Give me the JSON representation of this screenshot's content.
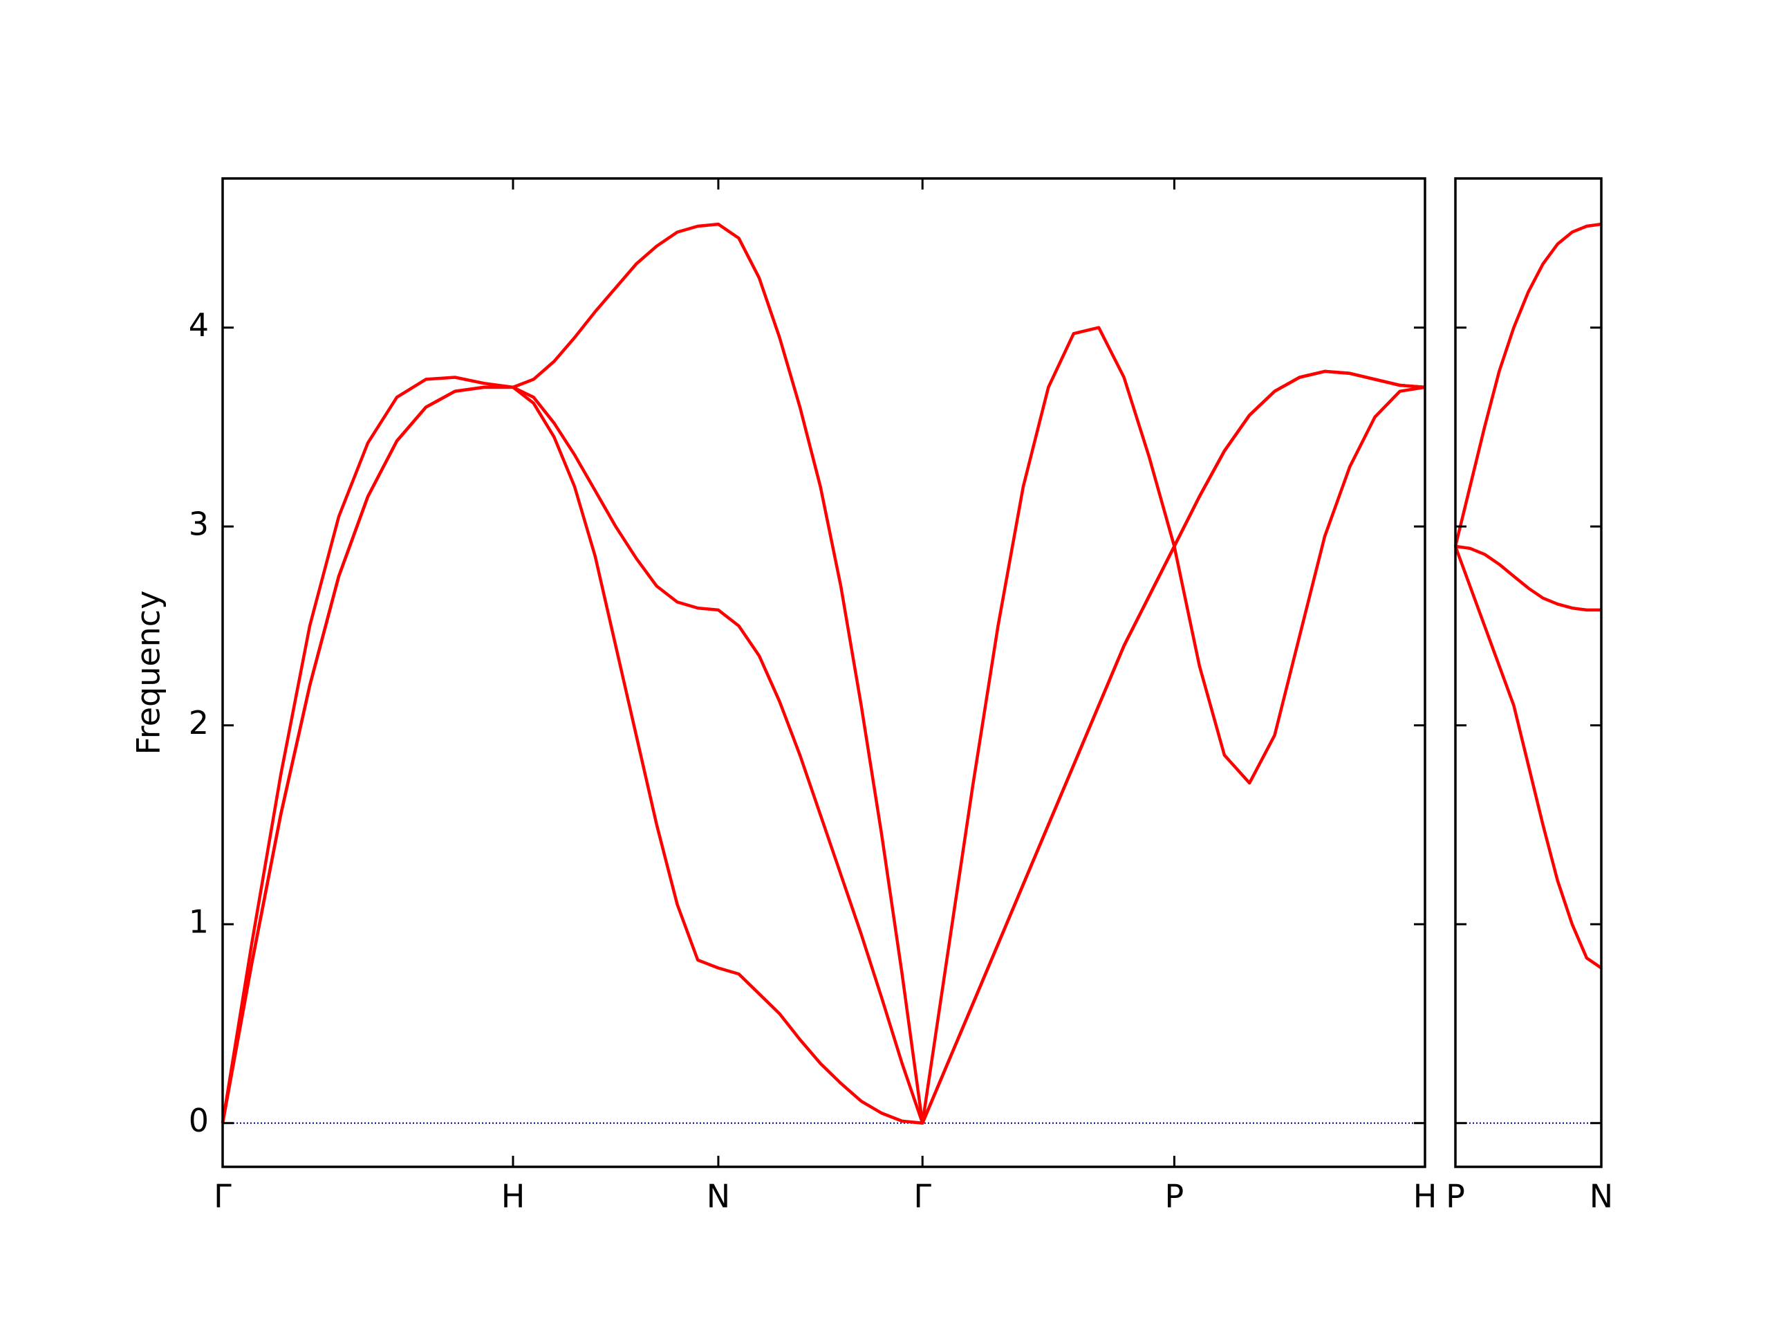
{
  "chart_data": [
    {
      "type": "line",
      "ylabel": "Frequency",
      "x": [
        0,
        0.0256,
        0.0512,
        0.0768,
        0.1024,
        0.128,
        0.1536,
        0.1792,
        0.2048,
        0.2304,
        0.256,
        0.2741,
        0.2922,
        0.3103,
        0.3284,
        0.3465,
        0.3646,
        0.3827,
        0.4008,
        0.4189,
        0.437,
        0.455,
        0.473,
        0.491,
        0.509,
        0.527,
        0.545,
        0.563,
        0.581,
        0.599,
        0.617,
        0.6392,
        0.6614,
        0.6836,
        0.7058,
        0.728,
        0.7502,
        0.7724,
        0.7946,
        0.8168,
        0.839,
        0.8611,
        0.8832,
        0.9053,
        0.9274,
        0.9495,
        0.9716,
        0.9937,
        1.0158,
        1.0379,
        1.06
      ],
      "series": [
        {
          "color": "#ff0000",
          "values": [
            0,
            0.9,
            1.75,
            2.5,
            3.05,
            3.42,
            3.65,
            3.74,
            3.75,
            3.72,
            3.7,
            3.74,
            3.83,
            3.95,
            4.08,
            4.2,
            4.32,
            4.41,
            4.48,
            4.51,
            4.52,
            4.45,
            4.25,
            3.95,
            3.6,
            3.2,
            2.7,
            2.1,
            1.45,
            0.75,
            0,
            0.85,
            1.7,
            2.5,
            3.2,
            3.7,
            3.97,
            4.0,
            3.75,
            3.35,
            2.9,
            2.3,
            1.85,
            1.71,
            1.95,
            2.45,
            2.95,
            3.3,
            3.55,
            3.68,
            3.7
          ]
        },
        {
          "color": "#ff0000",
          "values": [
            0,
            0.8,
            1.55,
            2.2,
            2.75,
            3.15,
            3.43,
            3.6,
            3.68,
            3.7,
            3.7,
            3.65,
            3.52,
            3.36,
            3.18,
            3.0,
            2.84,
            2.7,
            2.62,
            2.59,
            2.58,
            2.5,
            2.35,
            2.12,
            1.85,
            1.55,
            1.25,
            0.95,
            0.63,
            0.3,
            0,
            0.3,
            0.6,
            0.9,
            1.2,
            1.5,
            1.8,
            2.1,
            2.4,
            2.65,
            2.9,
            3.15,
            3.38,
            3.56,
            3.68,
            3.75,
            3.78,
            3.77,
            3.74,
            3.71,
            3.7
          ]
        },
        {
          "color": "#ff0000",
          "values": [
            0,
            0.8,
            1.55,
            2.2,
            2.75,
            3.15,
            3.43,
            3.6,
            3.68,
            3.7,
            3.7,
            3.62,
            3.45,
            3.2,
            2.85,
            2.4,
            1.95,
            1.5,
            1.1,
            0.82,
            0.78,
            0.75,
            0.65,
            0.55,
            0.42,
            0.3,
            0.2,
            0.11,
            0.05,
            0.01,
            0,
            0.3,
            0.6,
            0.9,
            1.2,
            1.5,
            1.8,
            2.1,
            2.4,
            2.65,
            2.9,
            3.15,
            3.38,
            3.56,
            3.68,
            3.75,
            3.78,
            3.77,
            3.74,
            3.71,
            3.7
          ]
        }
      ],
      "xlim": [
        0,
        1.06
      ],
      "xticks": [
        {
          "value": 0,
          "label": "Γ"
        },
        {
          "value": 0.256,
          "label": "H"
        },
        {
          "value": 0.437,
          "label": "N"
        },
        {
          "value": 0.617,
          "label": "Γ"
        },
        {
          "value": 0.839,
          "label": "P"
        },
        {
          "value": 1.06,
          "label": "H"
        }
      ],
      "ylim": [
        -0.22,
        4.75
      ],
      "yticks": [
        0,
        1,
        2,
        3,
        4
      ],
      "hline": 0,
      "hline_color": "#00008b"
    },
    {
      "type": "line",
      "x": [
        0,
        0.0128,
        0.0256,
        0.0384,
        0.0512,
        0.064,
        0.0768,
        0.0896,
        0.1024,
        0.1152,
        0.128
      ],
      "series": [
        {
          "color": "#ff0000",
          "values": [
            2.9,
            3.2,
            3.5,
            3.78,
            4.0,
            4.18,
            4.32,
            4.42,
            4.48,
            4.51,
            4.52
          ]
        },
        {
          "color": "#ff0000",
          "values": [
            2.9,
            2.89,
            2.86,
            2.81,
            2.75,
            2.69,
            2.64,
            2.61,
            2.59,
            2.58,
            2.58
          ]
        },
        {
          "color": "#ff0000",
          "values": [
            2.9,
            2.7,
            2.5,
            2.3,
            2.1,
            1.8,
            1.5,
            1.22,
            1.0,
            0.83,
            0.78
          ]
        }
      ],
      "xlim": [
        0,
        0.128
      ],
      "xticks": [
        {
          "value": 0,
          "label": "P"
        },
        {
          "value": 0.128,
          "label": "N"
        }
      ],
      "ylim": [
        -0.22,
        4.75
      ],
      "yticks": [
        0,
        1,
        2,
        3,
        4
      ],
      "show_ytick_labels": false,
      "hline": 0,
      "hline_color": "#00008b"
    }
  ]
}
